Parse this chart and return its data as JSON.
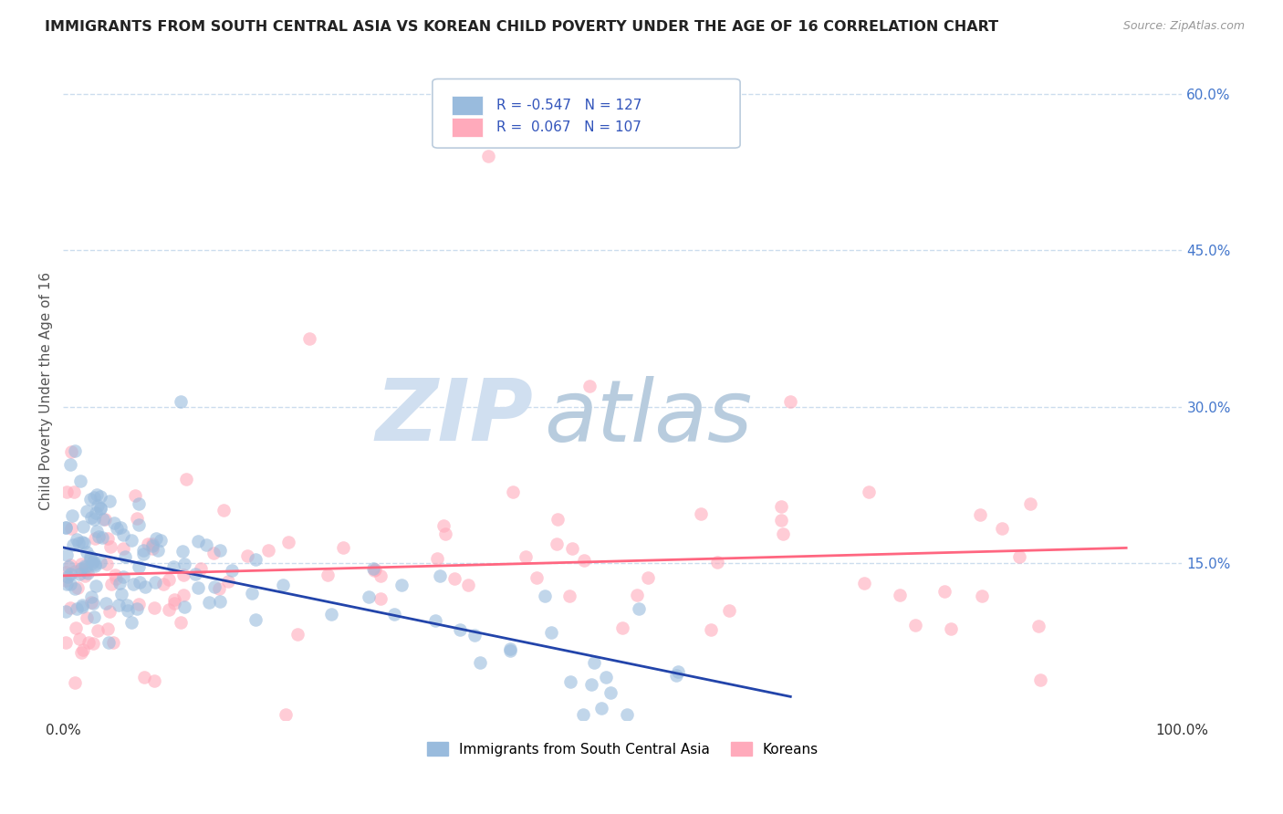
{
  "title": "IMMIGRANTS FROM SOUTH CENTRAL ASIA VS KOREAN CHILD POVERTY UNDER THE AGE OF 16 CORRELATION CHART",
  "source": "Source: ZipAtlas.com",
  "ylabel": "Child Poverty Under the Age of 16",
  "xlim": [
    0,
    100
  ],
  "ylim": [
    0,
    63
  ],
  "yticks": [
    15,
    30,
    45,
    60
  ],
  "ytick_labels": [
    "15.0%",
    "30.0%",
    "45.0%",
    "60.0%"
  ],
  "xtick_labels": [
    "0.0%",
    "100.0%"
  ],
  "blue_R": -0.547,
  "blue_N": 127,
  "pink_R": 0.067,
  "pink_N": 107,
  "blue_color": "#99BBDD",
  "pink_color": "#FFAABB",
  "blue_line_color": "#2244AA",
  "pink_line_color": "#FF6680",
  "background_color": "#FFFFFF",
  "grid_color": "#CCDDEEFF",
  "watermark_zip": "ZIP",
  "watermark_atlas": "atlas",
  "watermark_color": "#D0DFF0",
  "legend_label_blue": "Immigrants from South Central Asia",
  "legend_label_pink": "Koreans",
  "title_fontsize": 11.5,
  "axis_label_fontsize": 11,
  "tick_fontsize": 11,
  "blue_line_intercept": 16.5,
  "blue_line_slope": -0.22,
  "blue_line_xend": 65,
  "pink_line_intercept": 13.8,
  "pink_line_slope": 0.028,
  "pink_line_xend": 95
}
